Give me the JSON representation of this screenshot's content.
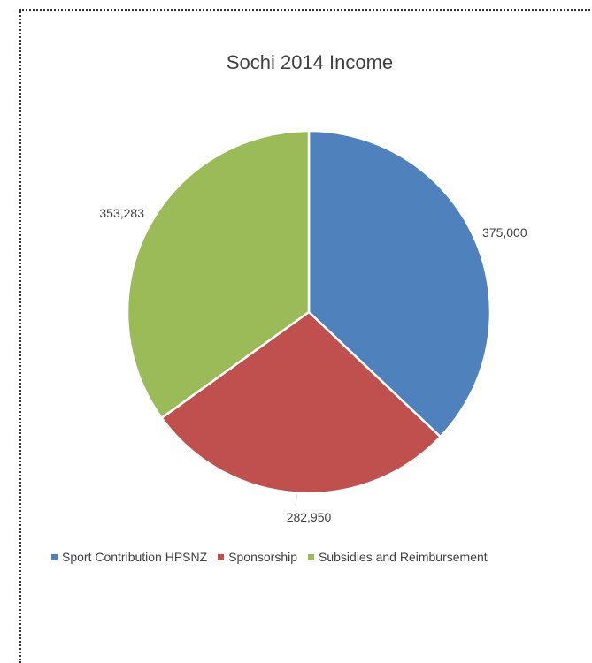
{
  "chart_data": {
    "type": "pie",
    "title": "Sochi 2014 Income",
    "slices": [
      {
        "name": "Sport Contribution HPSNZ",
        "value": 375000,
        "label": "375,000",
        "color": "#4F81BD"
      },
      {
        "name": "Sponsorship",
        "value": 282950,
        "label": "282,950",
        "color": "#C0504D"
      },
      {
        "name": "Subsidies and Reimbursement",
        "value": 353283,
        "label": "353,283",
        "color": "#9BBB59"
      }
    ],
    "legend_position": "bottom"
  }
}
